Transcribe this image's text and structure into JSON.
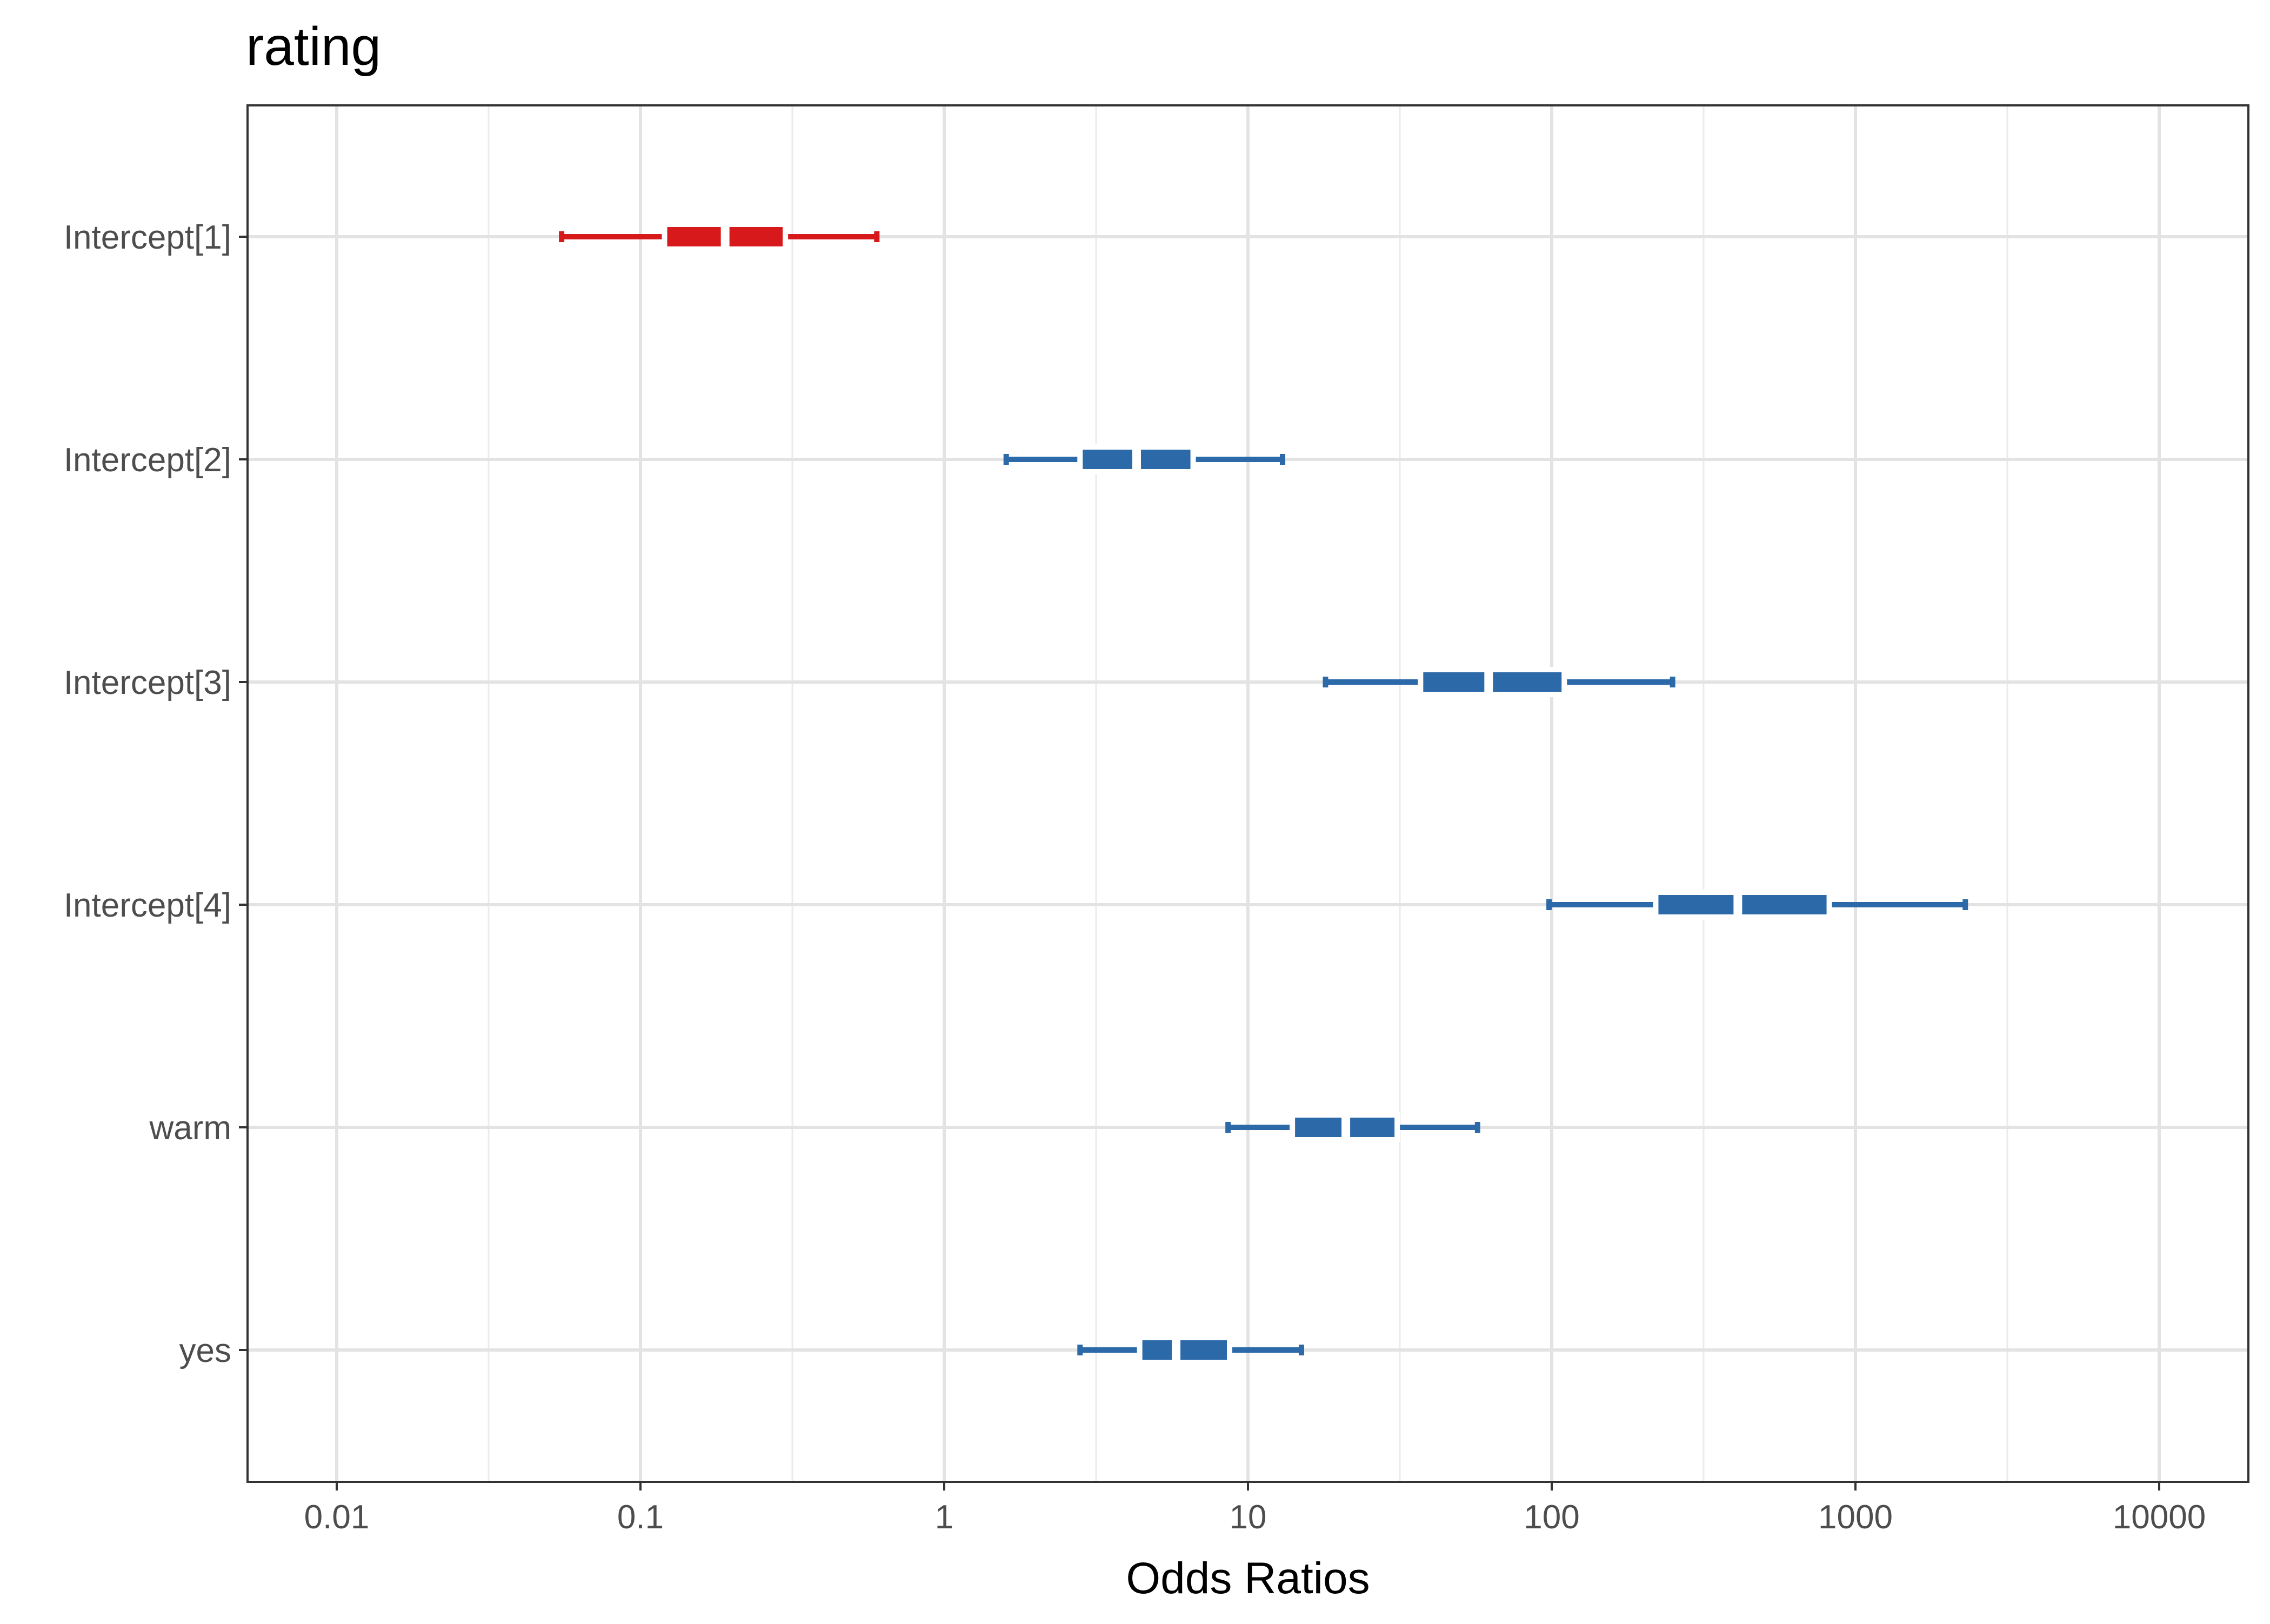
{
  "chart_data": {
    "type": "forest",
    "title": "rating",
    "xlabel": "Odds Ratios",
    "ylabel": "",
    "xscale": "log10",
    "xlim": [
      0.005,
      20000
    ],
    "xticks": [
      0.01,
      0.1,
      1,
      10,
      100,
      1000,
      10000
    ],
    "xtick_labels": [
      "0.01",
      "0.1",
      "1",
      "10",
      "100",
      "1000",
      "10000"
    ],
    "grid": true,
    "legend": "none",
    "categories": [
      "Intercept[1]",
      "Intercept[2]",
      "Intercept[3]",
      "Intercept[4]",
      "warm",
      "yes"
    ],
    "estimates": [
      {
        "term": "Intercept[1]",
        "estimate": 0.19,
        "inner_low": 0.12,
        "inner_high": 0.3,
        "outer_low": 0.055,
        "outer_high": 0.6,
        "color": "#d7191c"
      },
      {
        "term": "Intercept[2]",
        "estimate": 4.3,
        "inner_low": 2.8,
        "inner_high": 6.6,
        "outer_low": 1.6,
        "outer_high": 13,
        "color": "#2c69a8"
      },
      {
        "term": "Intercept[3]",
        "estimate": 62,
        "inner_low": 37,
        "inner_high": 110,
        "outer_low": 18,
        "outer_high": 250,
        "color": "#2c69a8"
      },
      {
        "term": "Intercept[4]",
        "estimate": 410,
        "inner_low": 220,
        "inner_high": 820,
        "outer_low": 98,
        "outer_high": 2300,
        "color": "#2c69a8"
      },
      {
        "term": "warm",
        "estimate": 21,
        "inner_low": 14,
        "inner_high": 31,
        "outer_low": 8.6,
        "outer_high": 57,
        "color": "#2c69a8"
      },
      {
        "term": "yes",
        "estimate": 5.8,
        "inner_low": 4.4,
        "inner_high": 8.7,
        "outer_low": 2.8,
        "outer_high": 15,
        "color": "#2c69a8"
      }
    ]
  }
}
